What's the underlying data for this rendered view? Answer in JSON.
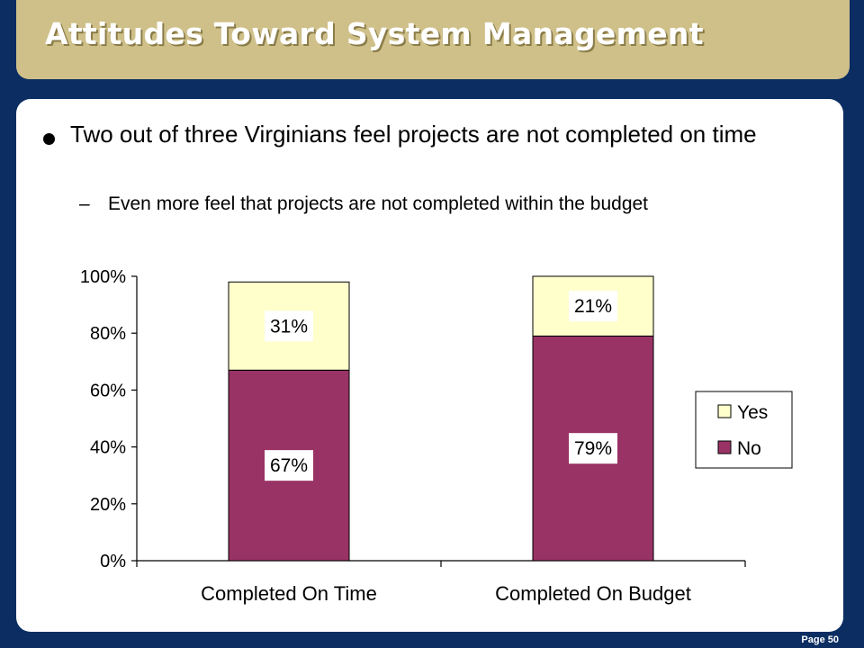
{
  "slide": {
    "title": "Attitudes Toward System Management",
    "bullet": "Two out of three Virginians feel projects are not completed on time",
    "sub_bullet_dash": "–",
    "sub_bullet": "Even more feel that projects are not completed within the budget",
    "page_number": "Page 50"
  },
  "colors": {
    "background": "#0b2d62",
    "title_bar": "#cfc08a",
    "no_series": "#993366",
    "yes_series": "#ffffcc"
  },
  "chart_data": {
    "type": "bar",
    "stacked": true,
    "categories": [
      "Completed On Time",
      "Completed On Budget"
    ],
    "series": [
      {
        "name": "No",
        "values": [
          67,
          79
        ],
        "labels": [
          "67%",
          "79%"
        ],
        "color": "#993366"
      },
      {
        "name": "Yes",
        "values": [
          31,
          21
        ],
        "labels": [
          "31%",
          "21%"
        ],
        "color": "#ffffcc"
      }
    ],
    "ylim": [
      0,
      100
    ],
    "yticks": [
      0,
      20,
      40,
      60,
      80,
      100
    ],
    "ytick_labels": [
      "0%",
      "20%",
      "40%",
      "60%",
      "80%",
      "100%"
    ],
    "legend": {
      "position": "right",
      "entries": [
        "Yes",
        "No"
      ]
    },
    "grid": false
  }
}
